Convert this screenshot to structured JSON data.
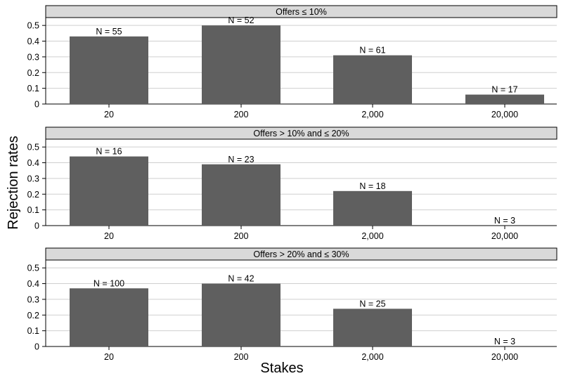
{
  "figure": {
    "ylabel": "Rejection rates",
    "xlabel": "Stakes"
  },
  "chart_data": [
    {
      "type": "bar",
      "title": "Offers ≤ 10%",
      "categories": [
        "20",
        "200",
        "2,000",
        "20,000"
      ],
      "values": [
        0.43,
        0.5,
        0.31,
        0.06
      ],
      "n_labels": [
        "N = 55",
        "N = 52",
        "N = 61",
        "N = 17"
      ],
      "ylim": [
        0,
        0.55
      ],
      "yticks": [
        0,
        0.1,
        0.2,
        0.3,
        0.4,
        0.5
      ],
      "ytick_labels": [
        "0",
        "0.1",
        "0.2",
        "0.3",
        "0.4",
        "0.5"
      ],
      "grid": true
    },
    {
      "type": "bar",
      "title": "Offers > 10% and ≤ 20%",
      "categories": [
        "20",
        "200",
        "2,000",
        "20,000"
      ],
      "values": [
        0.44,
        0.39,
        0.22,
        0.0
      ],
      "n_labels": [
        "N = 16",
        "N = 23",
        "N = 18",
        "N = 3"
      ],
      "ylim": [
        0,
        0.55
      ],
      "yticks": [
        0,
        0.1,
        0.2,
        0.3,
        0.4,
        0.5
      ],
      "ytick_labels": [
        "0",
        "0.1",
        "0.2",
        "0.3",
        "0.4",
        "0.5"
      ],
      "grid": true
    },
    {
      "type": "bar",
      "title": "Offers > 20% and ≤ 30%",
      "categories": [
        "20",
        "200",
        "2,000",
        "20,000"
      ],
      "values": [
        0.37,
        0.4,
        0.24,
        0.0
      ],
      "n_labels": [
        "N = 100",
        "N = 42",
        "N = 25",
        "N = 3"
      ],
      "ylim": [
        0,
        0.55
      ],
      "yticks": [
        0,
        0.1,
        0.2,
        0.3,
        0.4,
        0.5
      ],
      "ytick_labels": [
        "0",
        "0.1",
        "0.2",
        "0.3",
        "0.4",
        "0.5"
      ],
      "grid": true
    }
  ],
  "colors": {
    "bar": "#5f5f5f",
    "strip": "#d9d9d9",
    "grid": "#cfcfcf",
    "frame": "#000000"
  }
}
